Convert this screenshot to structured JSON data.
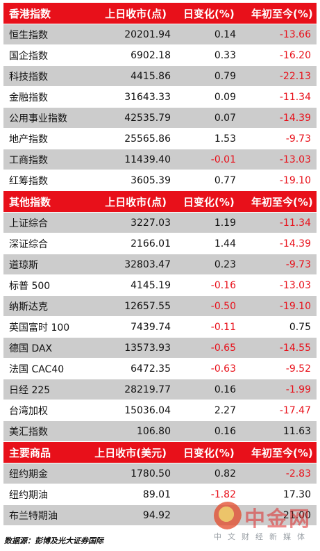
{
  "sections": [
    {
      "header": [
        "香港指数",
        "上日收市(点)",
        "日变化(%)",
        "年初至今(%)"
      ],
      "rows": [
        [
          "恒生指数",
          "20201.94",
          "0.14",
          "-13.66"
        ],
        [
          "国企指数",
          "6902.18",
          "0.33",
          "-16.20"
        ],
        [
          "科技指数",
          "4415.86",
          "0.79",
          "-22.13"
        ],
        [
          "金融指数",
          "31643.33",
          "0.09",
          "-11.34"
        ],
        [
          "公用事业指数",
          "42535.79",
          "0.07",
          "-14.39"
        ],
        [
          "地产指数",
          "25565.86",
          "1.53",
          "-9.73"
        ],
        [
          "工商指数",
          "11439.40",
          "-0.01",
          "-13.03"
        ],
        [
          "红筹指数",
          "3605.39",
          "0.77",
          "-19.10"
        ]
      ]
    },
    {
      "header": [
        "其他指数",
        "上日收市(点)",
        "日变化(%)",
        "年初至今(%)"
      ],
      "rows": [
        [
          "上证综合",
          "3227.03",
          "1.19",
          "-11.34"
        ],
        [
          "深证综合",
          "2166.01",
          "1.44",
          "-14.39"
        ],
        [
          "道琼斯",
          "32803.47",
          "0.23",
          "-9.73"
        ],
        [
          "标普 500",
          "4145.19",
          "-0.16",
          "-13.03"
        ],
        [
          "纳斯达克",
          "12657.55",
          "-0.50",
          "-19.10"
        ],
        [
          "英国富时 100",
          "7439.74",
          "-0.11",
          "0.75"
        ],
        [
          "德国 DAX",
          "13573.93",
          "-0.65",
          "-14.55"
        ],
        [
          "法国 CAC40",
          "6472.35",
          "-0.63",
          "-9.52"
        ],
        [
          "日经 225",
          "28219.77",
          "0.16",
          "-1.99"
        ],
        [
          "台湾加权",
          "15036.04",
          "2.27",
          "-17.47"
        ],
        [
          "美汇指数",
          "106.80",
          "0.16",
          "11.63"
        ]
      ]
    },
    {
      "header": [
        "主要商品",
        "上日收市(美元)",
        "日变化(%)",
        "年初至今(%)"
      ],
      "rows": [
        [
          "纽约期金",
          "1780.50",
          "0.82",
          "-2.83"
        ],
        [
          "纽约期油",
          "89.01",
          "-1.82",
          "17.30"
        ],
        [
          "布兰特期油",
          "94.92",
          "",
          "21.00"
        ]
      ]
    }
  ],
  "source": "数据源：彭博及光大证券国际",
  "watermark": {
    "title": "中金网",
    "subtitle": "中文财经新媒体"
  },
  "colors": {
    "header_bg": "#e8101a",
    "shade_row": "#cccccc",
    "negative": "#e8101a"
  }
}
